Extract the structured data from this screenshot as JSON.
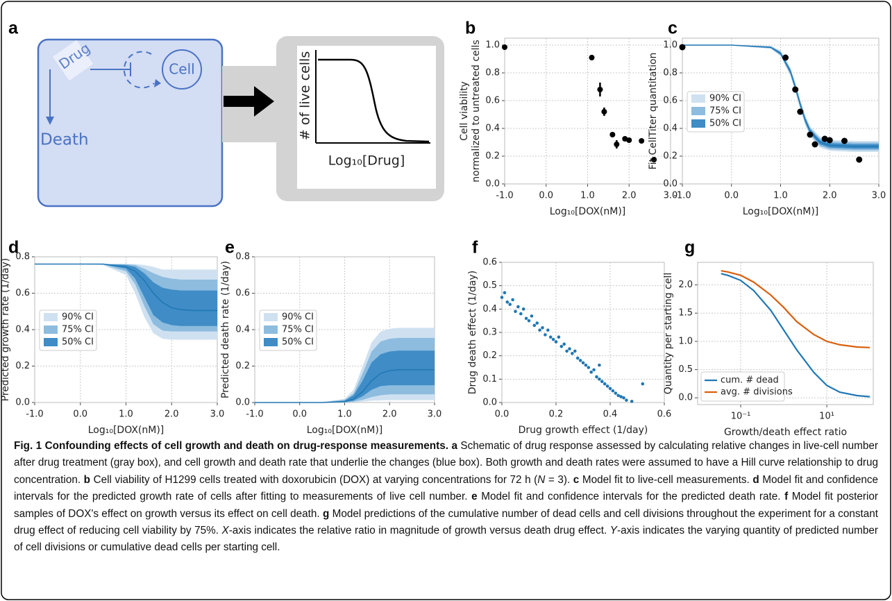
{
  "diagram": {
    "label": "a",
    "drug": "Drug",
    "cell": "Cell",
    "death": "Death",
    "plot_ylabel": "# of live cells",
    "plot_xlabel": "Log₁₀[Drug]"
  },
  "chart_data": [
    {
      "type": "errorbar",
      "label": "b",
      "xlabel": "Log₁₀[DOX(nM)]",
      "ylabel": [
        "Cell viability",
        "normalized to untreated cells"
      ],
      "x": [
        -1,
        1.1,
        1.3,
        1.4,
        1.6,
        1.7,
        1.9,
        2.0,
        2.3,
        2.6
      ],
      "values": [
        0.985,
        0.91,
        0.68,
        0.52,
        0.355,
        0.285,
        0.325,
        0.315,
        0.31,
        0.175
      ],
      "errors": [
        0.01,
        0.02,
        0.05,
        0.03,
        0.015,
        0.03,
        0.01,
        0.01,
        0.01,
        0.01
      ],
      "color": "#000000",
      "grid": true,
      "xlim": [
        -1,
        3
      ],
      "xticks": [
        {
          "value": -1,
          "label": "-1.0"
        },
        {
          "value": 0,
          "label": "0.0"
        },
        {
          "value": 1,
          "label": "1.0"
        },
        {
          "value": 2,
          "label": "2.0"
        },
        {
          "value": 3,
          "label": "3.0"
        }
      ],
      "ylim": [
        0,
        1.05
      ],
      "yticks": [
        {
          "value": 0,
          "label": "0.0"
        },
        0.2,
        0.4,
        0.6,
        0.8,
        {
          "value": 1,
          "label": "1.0"
        }
      ]
    },
    {
      "type": "band",
      "label": "c",
      "xlabel": "Log₁₀[DOX(nM)]",
      "ylabel": "Fit CellTiter quantitation",
      "grid": true,
      "legend": "center left",
      "x": [
        -1,
        0,
        0.8,
        1.0,
        1.2,
        1.3,
        1.4,
        1.5,
        1.6,
        1.8,
        2.0,
        2.5,
        3.0
      ],
      "values": [
        1.0,
        1.0,
        0.984,
        0.94,
        0.809,
        0.697,
        0.573,
        0.461,
        0.38,
        0.301,
        0.278,
        0.27,
        0.27
      ],
      "color": "#1f77b4",
      "bands": [
        {
          "name": "90% CI",
          "color": "#cfe1f0",
          "upper": [
            1.003,
            1.003,
            0.994,
            0.96,
            0.839,
            0.732,
            0.608,
            0.496,
            0.415,
            0.341,
            0.318,
            0.31,
            0.31
          ],
          "lower": [
            0.997,
            0.997,
            0.974,
            0.92,
            0.779,
            0.662,
            0.538,
            0.426,
            0.345,
            0.261,
            0.238,
            0.23,
            0.23
          ]
        },
        {
          "name": "75% CI",
          "color": "#8dbcdf",
          "upper": [
            1.002,
            1.002,
            0.991,
            0.954,
            0.83,
            0.722,
            0.598,
            0.486,
            0.405,
            0.329,
            0.306,
            0.298,
            0.298
          ],
          "lower": [
            0.998,
            0.998,
            0.977,
            0.926,
            0.788,
            0.672,
            0.548,
            0.436,
            0.355,
            0.273,
            0.25,
            0.242,
            0.242
          ]
        },
        {
          "name": "50% CI",
          "color": "#3f8cc6",
          "upper": [
            1.001,
            1.001,
            0.988,
            0.948,
            0.821,
            0.711,
            0.587,
            0.475,
            0.394,
            0.317,
            0.294,
            0.286,
            0.286
          ],
          "lower": [
            0.999,
            0.999,
            0.98,
            0.932,
            0.797,
            0.683,
            0.559,
            0.447,
            0.366,
            0.285,
            0.262,
            0.254,
            0.254
          ]
        }
      ],
      "points_x": [
        -1,
        1.1,
        1.3,
        1.4,
        1.6,
        1.7,
        1.9,
        2.0,
        2.3,
        2.6
      ],
      "points_y": [
        0.985,
        0.91,
        0.68,
        0.52,
        0.355,
        0.285,
        0.325,
        0.315,
        0.31,
        0.175
      ],
      "point_color": "#000000",
      "xlim": [
        -1,
        3
      ],
      "xticks": [
        {
          "value": -1,
          "label": "-1.0"
        },
        {
          "value": 0,
          "label": "0.0"
        },
        {
          "value": 1,
          "label": "1.0"
        },
        {
          "value": 2,
          "label": "2.0"
        },
        {
          "value": 3,
          "label": "3.0"
        }
      ],
      "ylim": [
        0,
        1.05
      ],
      "yticks": [
        {
          "value": 0,
          "label": "0.0"
        },
        0.2,
        0.4,
        0.6,
        0.8,
        {
          "value": 1,
          "label": "1.0"
        }
      ]
    },
    {
      "type": "band",
      "label": "d",
      "xlabel": "Log₁₀[DOX(nM)]",
      "ylabel": "Predicted growth rate (1/day)",
      "grid": true,
      "legend": "center left",
      "x": [
        -1,
        0,
        0.5,
        1.0,
        1.2,
        1.4,
        1.6,
        1.8,
        2.0,
        2.2,
        2.5,
        3.0
      ],
      "values": [
        0.76,
        0.76,
        0.76,
        0.745,
        0.72,
        0.67,
        0.6,
        0.55,
        0.52,
        0.51,
        0.505,
        0.505
      ],
      "color": "#1f77b4",
      "bands": [
        {
          "name": "90% CI",
          "color": "#cfe1f0",
          "upper": [
            0.76,
            0.76,
            0.76,
            0.76,
            0.76,
            0.755,
            0.745,
            0.73,
            0.73,
            0.73,
            0.73,
            0.73
          ],
          "lower": [
            0.76,
            0.76,
            0.755,
            0.7,
            0.6,
            0.47,
            0.38,
            0.35,
            0.345,
            0.345,
            0.345,
            0.345
          ]
        },
        {
          "name": "75% CI",
          "color": "#8dbcdf",
          "upper": [
            0.76,
            0.76,
            0.76,
            0.76,
            0.755,
            0.735,
            0.71,
            0.69,
            0.68,
            0.675,
            0.675,
            0.675
          ],
          "lower": [
            0.76,
            0.76,
            0.757,
            0.72,
            0.65,
            0.53,
            0.43,
            0.395,
            0.39,
            0.39,
            0.39,
            0.39
          ]
        },
        {
          "name": "50% CI",
          "color": "#3f8cc6",
          "upper": [
            0.76,
            0.76,
            0.76,
            0.755,
            0.745,
            0.71,
            0.66,
            0.63,
            0.62,
            0.615,
            0.615,
            0.615
          ],
          "lower": [
            0.76,
            0.76,
            0.758,
            0.735,
            0.68,
            0.58,
            0.48,
            0.44,
            0.425,
            0.42,
            0.42,
            0.42
          ]
        }
      ],
      "xlim": [
        -1,
        3
      ],
      "xticks": [
        {
          "value": -1,
          "label": "-1.0"
        },
        {
          "value": 0,
          "label": "0.0"
        },
        {
          "value": 1,
          "label": "1.0"
        },
        {
          "value": 2,
          "label": "2.0"
        },
        {
          "value": 3,
          "label": "3.0"
        }
      ],
      "ylim": [
        0,
        0.8
      ],
      "yticks": [
        {
          "value": 0,
          "label": "0.0"
        },
        0.2,
        0.4,
        0.6,
        0.8
      ]
    },
    {
      "type": "band",
      "label": "e",
      "xlabel": "Log₁₀[DOX(nM)]",
      "ylabel": "Predicted death rate (1/day)",
      "grid": true,
      "legend": "center left",
      "x": [
        -1,
        0,
        0.5,
        1.0,
        1.2,
        1.4,
        1.6,
        1.8,
        2.0,
        2.2,
        2.5,
        3.0
      ],
      "values": [
        0,
        0,
        0,
        0.005,
        0.02,
        0.06,
        0.12,
        0.16,
        0.175,
        0.18,
        0.18,
        0.18
      ],
      "color": "#1f77b4",
      "bands": [
        {
          "name": "90% CI",
          "color": "#cfe1f0",
          "upper": [
            0,
            0,
            0.003,
            0.02,
            0.07,
            0.2,
            0.33,
            0.39,
            0.405,
            0.41,
            0.41,
            0.41
          ],
          "lower": [
            0,
            0,
            0,
            0,
            0.002,
            0.005,
            0.01,
            0.012,
            0.013,
            0.013,
            0.013,
            0.013
          ]
        },
        {
          "name": "75% CI",
          "color": "#8dbcdf",
          "upper": [
            0,
            0,
            0.002,
            0.015,
            0.05,
            0.16,
            0.28,
            0.335,
            0.35,
            0.355,
            0.355,
            0.355
          ],
          "lower": [
            0,
            0,
            0,
            0,
            0.005,
            0.015,
            0.03,
            0.04,
            0.045,
            0.045,
            0.045,
            0.045
          ]
        },
        {
          "name": "50% CI",
          "color": "#3f8cc6",
          "upper": [
            0,
            0,
            0.001,
            0.01,
            0.04,
            0.12,
            0.22,
            0.265,
            0.28,
            0.285,
            0.285,
            0.285
          ],
          "lower": [
            0,
            0,
            0,
            0.002,
            0.01,
            0.035,
            0.07,
            0.09,
            0.095,
            0.095,
            0.095,
            0.095
          ]
        }
      ],
      "xlim": [
        -1,
        3
      ],
      "xticks": [
        {
          "value": -1,
          "label": "-1.0"
        },
        {
          "value": 0,
          "label": "0.0"
        },
        {
          "value": 1,
          "label": "1.0"
        },
        {
          "value": 2,
          "label": "2.0"
        },
        {
          "value": 3,
          "label": "3.0"
        }
      ],
      "ylim": [
        0,
        0.8
      ],
      "yticks": [
        {
          "value": 0,
          "label": "0.0"
        },
        0.2,
        0.4,
        0.6,
        0.8
      ]
    },
    {
      "type": "scatter",
      "label": "f",
      "xlabel": "Drug growth effect (1/day)",
      "ylabel": "Drug death effect (1/day)",
      "grid": true,
      "color": "#1f77b4",
      "x": [
        0.0,
        0.01,
        0.02,
        0.03,
        0.04,
        0.05,
        0.06,
        0.07,
        0.08,
        0.09,
        0.1,
        0.11,
        0.12,
        0.13,
        0.14,
        0.15,
        0.16,
        0.17,
        0.18,
        0.19,
        0.2,
        0.21,
        0.22,
        0.23,
        0.24,
        0.25,
        0.26,
        0.27,
        0.28,
        0.29,
        0.3,
        0.31,
        0.32,
        0.33,
        0.34,
        0.35,
        0.36,
        0.37,
        0.38,
        0.39,
        0.4,
        0.41,
        0.42,
        0.43,
        0.44,
        0.45,
        0.46,
        0.48,
        0.36,
        0.52
      ],
      "values": [
        0.45,
        0.47,
        0.43,
        0.42,
        0.44,
        0.39,
        0.41,
        0.38,
        0.4,
        0.36,
        0.35,
        0.37,
        0.33,
        0.34,
        0.31,
        0.32,
        0.29,
        0.31,
        0.28,
        0.27,
        0.26,
        0.28,
        0.24,
        0.25,
        0.22,
        0.23,
        0.21,
        0.22,
        0.19,
        0.18,
        0.17,
        0.16,
        0.15,
        0.13,
        0.14,
        0.11,
        0.1,
        0.09,
        0.08,
        0.07,
        0.06,
        0.05,
        0.04,
        0.03,
        0.025,
        0.02,
        0.01,
        0.005,
        0.16,
        0.08
      ],
      "xlim": [
        0,
        0.6
      ],
      "xticks": [
        {
          "value": 0,
          "label": "0.0"
        },
        0.2,
        0.4,
        0.6
      ],
      "ylim": [
        0,
        0.6
      ],
      "yticks": [
        {
          "value": 0,
          "label": "0.0"
        },
        0.1,
        0.2,
        0.3,
        0.4,
        0.5,
        0.6
      ]
    },
    {
      "type": "line",
      "label": "g",
      "xlabel": "Growth/death effect ratio",
      "ylabel": "Quantity per starting cell",
      "grid": true,
      "log_x": true,
      "legend": "lower left",
      "x": [
        0.035,
        0.05,
        0.1,
        0.2,
        0.5,
        1,
        2,
        5,
        10,
        20,
        50,
        100
      ],
      "series": [
        {
          "name": "cum. # dead",
          "color": "#1f77b4",
          "values": [
            2.2,
            2.17,
            2.08,
            1.9,
            1.55,
            1.2,
            0.85,
            0.45,
            0.22,
            0.1,
            0.04,
            0.02
          ]
        },
        {
          "name": "avg. # divisions",
          "color": "#d95f0e",
          "values": [
            2.25,
            2.23,
            2.17,
            2.05,
            1.82,
            1.6,
            1.35,
            1.12,
            1.0,
            0.94,
            0.9,
            0.89
          ]
        }
      ],
      "xlim": [
        0.01,
        120
      ],
      "xticks": [
        {
          "value": 0.1,
          "label": "10⁻¹"
        },
        {
          "value": 10,
          "label": "10¹"
        }
      ],
      "ylim": [
        -0.12,
        2.4
      ],
      "yticks": [
        {
          "value": 0,
          "label": "0.0"
        },
        0.5,
        {
          "value": 1,
          "label": "1.0"
        },
        1.5,
        {
          "value": 2,
          "label": "2.0"
        }
      ]
    }
  ],
  "caption": [
    {
      "text": "Fig. 1 Confounding effects of cell growth and death on drug-response measurements.",
      "style": "bold"
    },
    {
      "text": " "
    },
    {
      "text": "a",
      "style": "bold"
    },
    {
      "text": " Schematic of drug response assessed by calculating relative changes in live-cell number after drug treatment (gray box), and cell growth and death rate that underlie the changes (blue box). Both growth and death rates were assumed to have a Hill curve relationship to drug concentration. "
    },
    {
      "text": "b",
      "style": "bold"
    },
    {
      "text": " Cell viability of H1299 cells treated with doxorubicin (DOX) at varying concentrations for 72 h ("
    },
    {
      "text": "N",
      "style": "italic"
    },
    {
      "text": " = 3). "
    },
    {
      "text": "c",
      "style": "bold"
    },
    {
      "text": " Model fit to live-cell measurements. "
    },
    {
      "text": "d",
      "style": "bold"
    },
    {
      "text": " Model fit and confidence intervals for the predicted growth rate of cells after fitting to measurements of live cell number. "
    },
    {
      "text": "e",
      "style": "bold"
    },
    {
      "text": " Model fit and confidence intervals for the predicted death rate. "
    },
    {
      "text": "f",
      "style": "bold"
    },
    {
      "text": " Model fit posterior samples of DOX's effect on growth versus its effect on cell death. "
    },
    {
      "text": "g",
      "style": "bold"
    },
    {
      "text": " Model predictions of the cumulative number of dead cells and cell divisions throughout the experiment for a constant drug effect of reducing cell viability by 75%. "
    },
    {
      "text": "X",
      "style": "italic"
    },
    {
      "text": "-axis indicates the relative ratio in magnitude of growth versus death drug effect. "
    },
    {
      "text": "Y",
      "style": "italic"
    },
    {
      "text": "-axis indicates the varying quantity of predicted number of cell divisions or cumulative dead cells per starting cell."
    }
  ]
}
